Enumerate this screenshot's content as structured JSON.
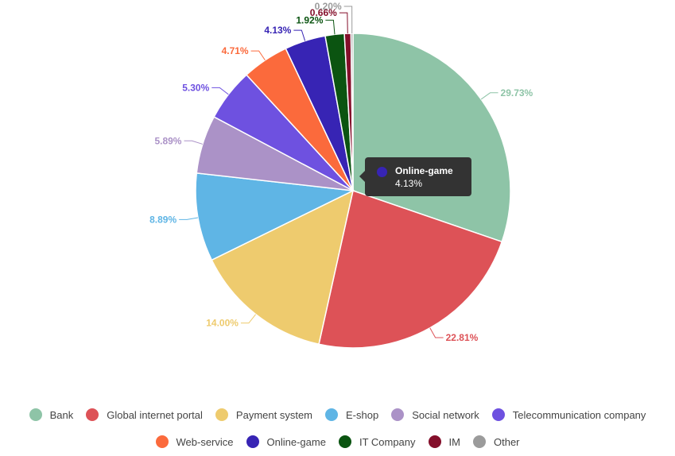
{
  "chart_data": {
    "type": "pie",
    "categories": [
      "Bank",
      "Global internet portal",
      "Payment system",
      "E-shop",
      "Social network",
      "Telecommunication company",
      "Web-service",
      "Online-game",
      "IT Company",
      "IM",
      "Other"
    ],
    "values": [
      29.73,
      22.81,
      14.0,
      8.89,
      5.89,
      5.3,
      4.71,
      4.13,
      1.92,
      0.66,
      0.2
    ],
    "labels": [
      "29.73%",
      "22.81%",
      "14.00%",
      "8.89%",
      "5.89%",
      "5.30%",
      "4.71%",
      "4.13%",
      "1.92%",
      "0.66%",
      "0.20%"
    ],
    "colors": [
      "#8ec4a7",
      "#dd5257",
      "#eecb6e",
      "#5fb5e5",
      "#ab92c7",
      "#6e51e0",
      "#fb6a3c",
      "#3724b4",
      "#0b5411",
      "#840f2b",
      "#9b9b9b"
    ],
    "legend_placement": "bottom"
  },
  "tooltip": {
    "title": "Online-game",
    "value": "4.13%",
    "color": "#3724b4"
  },
  "legend": {
    "row1": [
      {
        "label": "Bank",
        "color": "#8ec4a7"
      },
      {
        "label": "Global internet portal",
        "color": "#dd5257"
      },
      {
        "label": "Payment system",
        "color": "#eecb6e"
      },
      {
        "label": "E-shop",
        "color": "#5fb5e5"
      },
      {
        "label": "Social network",
        "color": "#ab92c7"
      },
      {
        "label": "Telecommunication company",
        "color": "#6e51e0"
      }
    ],
    "row2": [
      {
        "label": "Web-service",
        "color": "#fb6a3c"
      },
      {
        "label": "Online-game",
        "color": "#3724b4"
      },
      {
        "label": "IT Company",
        "color": "#0b5411"
      },
      {
        "label": "IM",
        "color": "#840f2b"
      },
      {
        "label": "Other",
        "color": "#9b9b9b"
      }
    ]
  }
}
